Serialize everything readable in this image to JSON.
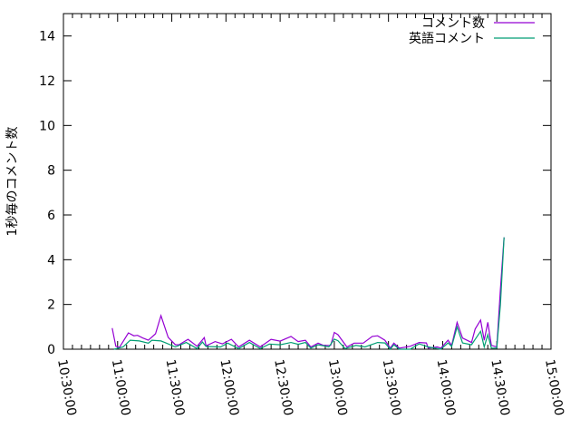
{
  "chart_data": {
    "type": "line",
    "title": "",
    "xlabel": "",
    "ylabel": "1秒毎のコメント数",
    "xlim": [
      "10:30:00",
      "15:00:00"
    ],
    "ylim": [
      0,
      15
    ],
    "xticks": [
      "10:30:00",
      "11:00:00",
      "11:30:00",
      "12:00:00",
      "12:30:00",
      "13:00:00",
      "13:30:00",
      "14:00:00",
      "14:30:00",
      "15:00:00"
    ],
    "yticks": [
      "0",
      "2",
      "4",
      "6",
      "8",
      "10",
      "12",
      "14"
    ],
    "grid": false,
    "legend_placement": "top-right",
    "series": [
      {
        "name": "コメント数",
        "color": "#9400d3",
        "points": [
          [
            "10:57",
            0.94
          ],
          [
            "10:59",
            0.13
          ],
          [
            "11:01",
            0.08
          ],
          [
            "11:06",
            0.73
          ],
          [
            "11:09",
            0.6
          ],
          [
            "11:11",
            0.62
          ],
          [
            "11:14",
            0.5
          ],
          [
            "11:17",
            0.4
          ],
          [
            "11:21",
            0.69
          ],
          [
            "11:24",
            1.5
          ],
          [
            "11:28",
            0.53
          ],
          [
            "11:32",
            0.2
          ],
          [
            "11:34",
            0.2
          ],
          [
            "11:39",
            0.44
          ],
          [
            "11:44",
            0.13
          ],
          [
            "11:48",
            0.52
          ],
          [
            "11:49",
            0.15
          ],
          [
            "11:54",
            0.34
          ],
          [
            "11:58",
            0.24
          ],
          [
            "12:03",
            0.44
          ],
          [
            "12:07",
            0.1
          ],
          [
            "12:13",
            0.4
          ],
          [
            "12:19",
            0.1
          ],
          [
            "12:25",
            0.44
          ],
          [
            "12:30",
            0.36
          ],
          [
            "12:36",
            0.57
          ],
          [
            "12:40",
            0.34
          ],
          [
            "12:44",
            0.4
          ],
          [
            "12:47",
            0.1
          ],
          [
            "12:51",
            0.27
          ],
          [
            "12:54",
            0.17
          ],
          [
            "12:58",
            0.17
          ],
          [
            "13:00",
            0.75
          ],
          [
            "13:02",
            0.65
          ],
          [
            "13:07",
            0.1
          ],
          [
            "13:11",
            0.27
          ],
          [
            "13:16",
            0.27
          ],
          [
            "13:21",
            0.57
          ],
          [
            "13:24",
            0.6
          ],
          [
            "13:28",
            0.4
          ],
          [
            "13:31",
            0.05
          ],
          [
            "13:33",
            0.27
          ],
          [
            "13:36",
            0.05
          ],
          [
            "13:42",
            0.13
          ],
          [
            "13:47",
            0.3
          ],
          [
            "13:51",
            0.28
          ],
          [
            "13:52",
            0.05
          ],
          [
            "13:57",
            0.1
          ],
          [
            "13:59",
            0.05
          ],
          [
            "14:03",
            0.4
          ],
          [
            "14:05",
            0.17
          ],
          [
            "14:08",
            1.2
          ],
          [
            "14:11",
            0.5
          ],
          [
            "14:16",
            0.3
          ],
          [
            "14:18",
            0.9
          ],
          [
            "14:21",
            1.3
          ],
          [
            "14:23",
            0.4
          ],
          [
            "14:25",
            1.2
          ],
          [
            "14:27",
            0.17
          ],
          [
            "14:30",
            0.1
          ],
          [
            "14:32",
            2.7
          ],
          [
            "14:34",
            5.0
          ]
        ]
      },
      {
        "name": "英語コメント",
        "color": "#009e73",
        "points": [
          [
            "10:58",
            0.0
          ],
          [
            "11:03",
            0.1
          ],
          [
            "11:07",
            0.4
          ],
          [
            "11:12",
            0.37
          ],
          [
            "11:17",
            0.27
          ],
          [
            "11:19",
            0.4
          ],
          [
            "11:24",
            0.37
          ],
          [
            "11:27",
            0.27
          ],
          [
            "11:32",
            0.1
          ],
          [
            "11:38",
            0.3
          ],
          [
            "11:44",
            0.03
          ],
          [
            "11:47",
            0.32
          ],
          [
            "11:49",
            0.12
          ],
          [
            "11:57",
            0.1
          ],
          [
            "12:01",
            0.27
          ],
          [
            "12:07",
            0.03
          ],
          [
            "12:13",
            0.3
          ],
          [
            "12:19",
            0.03
          ],
          [
            "12:24",
            0.23
          ],
          [
            "12:30",
            0.2
          ],
          [
            "12:36",
            0.3
          ],
          [
            "12:40",
            0.22
          ],
          [
            "12:44",
            0.3
          ],
          [
            "12:47",
            0.05
          ],
          [
            "12:51",
            0.2
          ],
          [
            "12:57",
            0.1
          ],
          [
            "13:00",
            0.45
          ],
          [
            "13:02",
            0.38
          ],
          [
            "13:06",
            0.03
          ],
          [
            "13:12",
            0.17
          ],
          [
            "13:17",
            0.1
          ],
          [
            "13:24",
            0.3
          ],
          [
            "13:28",
            0.28
          ],
          [
            "13:31",
            0.0
          ],
          [
            "13:33",
            0.2
          ],
          [
            "13:36",
            0.0
          ],
          [
            "13:42",
            0.0
          ],
          [
            "13:47",
            0.24
          ],
          [
            "13:52",
            0.1
          ],
          [
            "13:59",
            0.0
          ],
          [
            "14:03",
            0.28
          ],
          [
            "14:05",
            0.12
          ],
          [
            "14:08",
            1.0
          ],
          [
            "14:11",
            0.28
          ],
          [
            "14:16",
            0.2
          ],
          [
            "14:21",
            0.8
          ],
          [
            "14:23",
            0.1
          ],
          [
            "14:25",
            0.65
          ],
          [
            "14:27",
            0.05
          ],
          [
            "14:30",
            0.05
          ],
          [
            "14:32",
            2.0
          ],
          [
            "14:34",
            5.0
          ]
        ]
      }
    ]
  }
}
